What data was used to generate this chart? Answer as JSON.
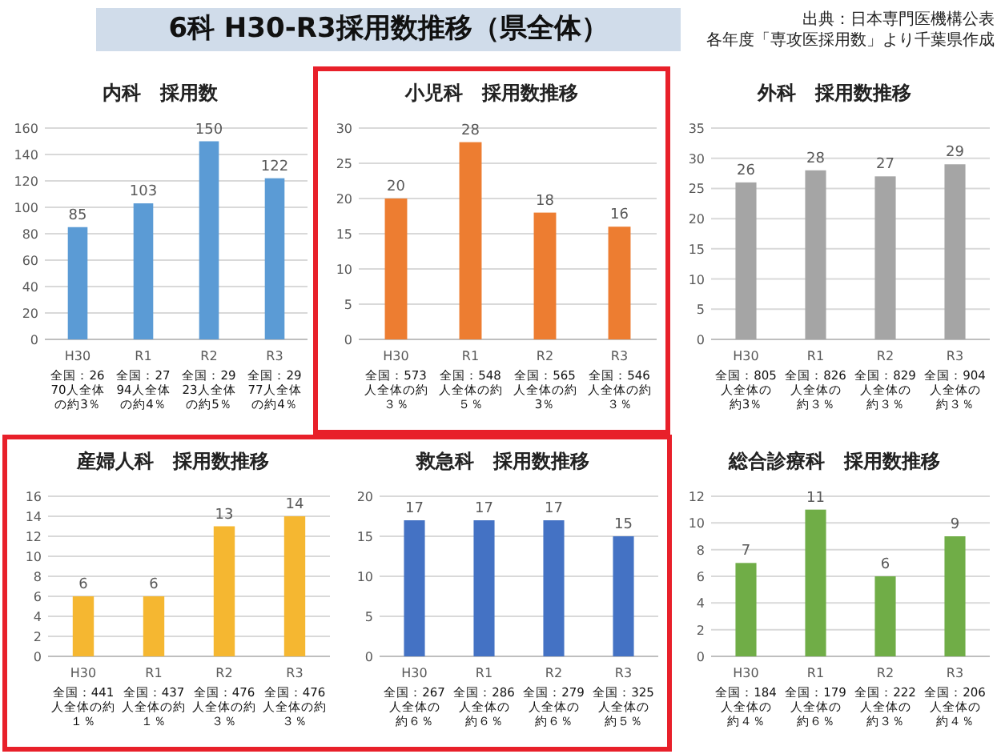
{
  "chart_data": [
    {
      "type": "other",
      "title": "6科 H30-R3採用数推移（県全体）",
      "annotations": [
        "出典：日本専門医機構公表",
        "各年度「専攻医採用数」より千葉県作成"
      ]
    },
    {
      "type": "bar",
      "title": "内科　採用数",
      "categories": [
        "H30",
        "R1",
        "R2",
        "R3"
      ],
      "values": [
        85,
        103,
        150,
        122
      ],
      "color": "#5b9bd5",
      "ylim": [
        0,
        160
      ],
      "yticks": [
        0,
        20,
        40,
        60,
        80,
        100,
        120,
        140,
        160
      ],
      "grid": "y",
      "data_labels": true,
      "annotations": [
        "全国：2670人全体の約3％",
        "全国：2794人全体の約4％",
        "全国：2923人全体の約5％",
        "全国：2977人全体の約4％"
      ]
    },
    {
      "type": "bar",
      "title": "小児科　採用数推移",
      "categories": [
        "H30",
        "R1",
        "R2",
        "R3"
      ],
      "values": [
        20,
        28,
        18,
        16
      ],
      "color": "#ed7d31",
      "ylim": [
        0,
        30
      ],
      "yticks": [
        0,
        5,
        10,
        15,
        20,
        25,
        30
      ],
      "grid": "y",
      "data_labels": true,
      "annotations": [
        "全国：573人全体の約３％",
        "全国：548人全体の約５％",
        "全国：565人全体の約3％",
        "全国：546人全体の約３％"
      ]
    },
    {
      "type": "bar",
      "title": "外科　採用数推移",
      "categories": [
        "H30",
        "R1",
        "R2",
        "R3"
      ],
      "values": [
        26,
        28,
        27,
        29
      ],
      "color": "#a5a5a5",
      "ylim": [
        0,
        35
      ],
      "yticks": [
        0,
        5,
        10,
        15,
        20,
        25,
        30,
        35
      ],
      "grid": "y",
      "data_labels": true,
      "annotations": [
        "全国：805人全体の約3％",
        "全国：826人全体の約３％",
        "全国：829人全体の約３％",
        "全国：904人全体の約３％"
      ]
    },
    {
      "type": "bar",
      "title": "産婦人科　採用数推移",
      "categories": [
        "H30",
        "R1",
        "R2",
        "R3"
      ],
      "values": [
        6,
        6,
        13,
        14
      ],
      "color": "#f5b731",
      "ylim": [
        0,
        16
      ],
      "yticks": [
        0,
        2,
        4,
        6,
        8,
        10,
        12,
        14,
        16
      ],
      "grid": "y",
      "data_labels": true,
      "annotations": [
        "全国：441人全体の約１％",
        "全国：437人全体の約１％",
        "全国：476人全体の約３％",
        "全国：476人全体の約３％"
      ]
    },
    {
      "type": "bar",
      "title": "救急科　採用数推移",
      "categories": [
        "H30",
        "R1",
        "R2",
        "R3"
      ],
      "values": [
        17,
        17,
        17,
        15
      ],
      "color": "#4472c4",
      "ylim": [
        0,
        20
      ],
      "yticks": [
        0,
        5,
        10,
        15,
        20
      ],
      "grid": "y",
      "data_labels": true,
      "annotations": [
        "全国：267人全体の約６％",
        "全国：286人全体の約６％",
        "全国：279人全体の約６％",
        "全国：325人全体の約５％"
      ]
    },
    {
      "type": "bar",
      "title": "総合診療科　採用数推移",
      "categories": [
        "H30",
        "R1",
        "R2",
        "R3"
      ],
      "values": [
        7,
        11,
        6,
        9
      ],
      "color": "#70ad47",
      "ylim": [
        0,
        12
      ],
      "yticks": [
        0,
        2,
        4,
        6,
        8,
        10,
        12
      ],
      "grid": "y",
      "data_labels": true,
      "annotations": [
        "全国：184人全体の約４％",
        "全国：179人全体の約６％",
        "全国：222人全体の約３％",
        "全国：206人全体の約４％"
      ]
    }
  ]
}
